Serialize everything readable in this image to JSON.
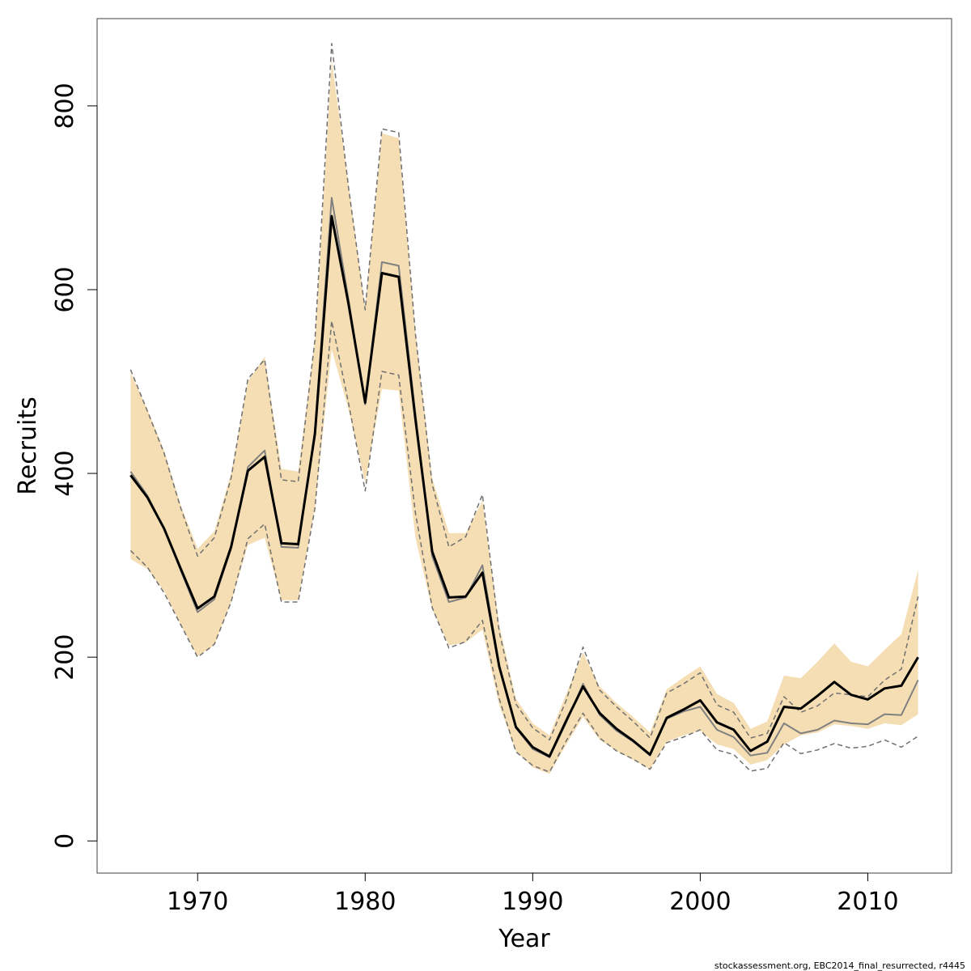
{
  "colors": {
    "band": "#f5deb3",
    "median": "#000000",
    "mean_line": "#808080",
    "dashed": "#707070",
    "frame": "#404040"
  },
  "footnote": "stockassessment.org, EBC2014_final_resurrected, r4445",
  "chart_data": {
    "type": "line",
    "title": "",
    "xlabel": "Year",
    "ylabel": "Recruits",
    "xlim": [
      1964,
      2015
    ],
    "ylim": [
      -35,
      895
    ],
    "x_ticks": [
      1970,
      1980,
      1990,
      2000,
      2010
    ],
    "y_ticks": [
      0,
      200,
      400,
      600,
      800
    ],
    "grid": false,
    "x": [
      1966,
      1967,
      1968,
      1969,
      1970,
      1971,
      1972,
      1973,
      1974,
      1975,
      1976,
      1977,
      1978,
      1979,
      1980,
      1981,
      1982,
      1983,
      1984,
      1985,
      1986,
      1987,
      1988,
      1989,
      1990,
      1991,
      1992,
      1993,
      1994,
      1995,
      1996,
      1997,
      1998,
      1999,
      2000,
      2001,
      2002,
      2003,
      2004,
      2005,
      2006,
      2007,
      2008,
      2009,
      2010,
      2011,
      2012,
      2013
    ],
    "series": [
      {
        "kind": "band",
        "lower": [
          307,
          296,
          272,
          235,
          201,
          213,
          260,
          322,
          330,
          262,
          262,
          362,
          535,
          470,
          390,
          492,
          490,
          330,
          252,
          213,
          216,
          230,
          148,
          98,
          80,
          73,
          105,
          135,
          110,
          98,
          88,
          78,
          108,
          115,
          120,
          105,
          100,
          83,
          88,
          105,
          115,
          118,
          127,
          125,
          122,
          128,
          126,
          138
        ],
        "upper": [
          510,
          470,
          425,
          365,
          318,
          337,
          400,
          500,
          527,
          405,
          402,
          545,
          850,
          715,
          580,
          770,
          765,
          555,
          395,
          335,
          335,
          370,
          235,
          155,
          128,
          115,
          160,
          205,
          168,
          150,
          135,
          118,
          165,
          178,
          190,
          160,
          150,
          122,
          130,
          180,
          177,
          195,
          215,
          195,
          190,
          208,
          225,
          295
        ]
      },
      {
        "kind": "median",
        "values": [
          398,
          374,
          340,
          296,
          253,
          266,
          320,
          403,
          418,
          324,
          323,
          443,
          680,
          585,
          477,
          618,
          614,
          459,
          315,
          265,
          266,
          292,
          190,
          124,
          102,
          92,
          131,
          168,
          139,
          122,
          109,
          94,
          134,
          143,
          153,
          129,
          121,
          98,
          108,
          146,
          144,
          158,
          173,
          159,
          154,
          166,
          169,
          200
        ]
      },
      {
        "kind": "line2",
        "values": [
          402,
          376,
          340,
          294,
          249,
          263,
          318,
          407,
          425,
          320,
          319,
          447,
          700,
          590,
          475,
          630,
          626,
          465,
          310,
          260,
          265,
          300,
          192,
          123,
          100,
          91,
          129,
          171,
          137,
          120,
          108,
          93,
          133,
          141,
          146,
          121,
          113,
          93,
          96,
          128,
          117,
          121,
          131,
          128,
          127,
          138,
          137,
          175
        ]
      },
      {
        "kind": "dashed-upper",
        "values": [
          513,
          468,
          422,
          362,
          310,
          330,
          395,
          503,
          524,
          393,
          391,
          545,
          868,
          712,
          578,
          775,
          771,
          552,
          388,
          320,
          331,
          377,
          228,
          149,
          123,
          110,
          153,
          211,
          164,
          146,
          130,
          112,
          161,
          171,
          183,
          148,
          140,
          112,
          117,
          157,
          140,
          147,
          161,
          159,
          157,
          175,
          187,
          266
        ]
      },
      {
        "kind": "dashed-lower",
        "values": [
          316,
          298,
          270,
          235,
          200,
          214,
          260,
          329,
          345,
          260,
          260,
          362,
          566,
          477,
          381,
          511,
          507,
          357,
          254,
          210,
          217,
          240,
          155,
          97,
          82,
          75,
          109,
          139,
          112,
          98,
          89,
          78,
          107,
          113,
          121,
          99,
          94,
          76,
          79,
          107,
          95,
          99,
          106,
          101,
          103,
          110,
          102,
          114
        ]
      }
    ]
  }
}
